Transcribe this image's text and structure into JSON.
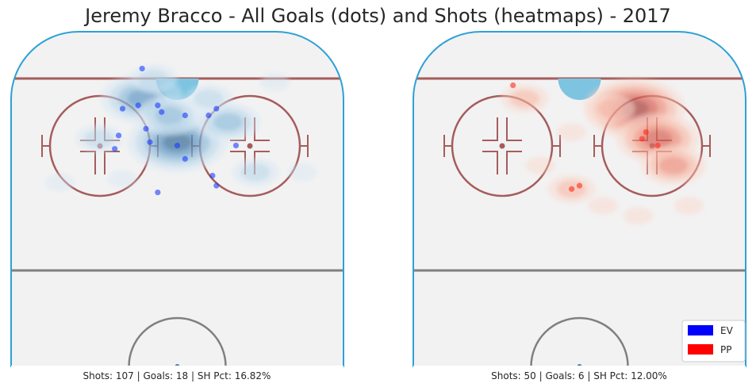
{
  "title": "Jeremy Bracco - All Goals (dots) and Shots (heatmaps) - 2017",
  "legend": [
    {
      "label": "EV",
      "color": "#0000ff"
    },
    {
      "label": "PP",
      "color": "#ff0000"
    }
  ],
  "colors": {
    "rink_fill": "#f2f2f2",
    "boards": "#2ea1d6",
    "red_line": "#a65c5c",
    "crease": "#7ec4e0",
    "gray_line": "#808080",
    "ev_dot": "#1a3cff",
    "pp_dot": "#ff2a1a"
  },
  "chart_data": [
    {
      "type": "scatter",
      "panel": "left",
      "strength": "EV",
      "caption": "Shots: 107 | Goals: 18 | SH Pct: 16.82%",
      "shots": 107,
      "goals": 18,
      "sh_pct": "16.82%",
      "xlim": [
        -42.5,
        42.5
      ],
      "ylim": [
        0,
        100
      ],
      "goals_points": [
        {
          "x": -9,
          "y": 89
        },
        {
          "x": -14,
          "y": 77
        },
        {
          "x": -10,
          "y": 78
        },
        {
          "x": -5,
          "y": 78
        },
        {
          "x": 2,
          "y": 75
        },
        {
          "x": -4,
          "y": 76
        },
        {
          "x": 8,
          "y": 75
        },
        {
          "x": -8,
          "y": 71
        },
        {
          "x": -15,
          "y": 69
        },
        {
          "x": -7,
          "y": 67
        },
        {
          "x": 2,
          "y": 62
        },
        {
          "x": 0,
          "y": 66
        },
        {
          "x": 10,
          "y": 77
        },
        {
          "x": 15,
          "y": 66
        },
        {
          "x": 9,
          "y": 57
        },
        {
          "x": 10,
          "y": 54
        },
        {
          "x": -16,
          "y": 65
        },
        {
          "x": -5,
          "y": 52
        }
      ],
      "heatmap_hotspots": [
        {
          "x": -9,
          "y": 80,
          "level": 4
        },
        {
          "x": 0,
          "y": 67,
          "level": 5
        },
        {
          "x": 13,
          "y": 73,
          "level": 3
        },
        {
          "x": -2,
          "y": 75,
          "level": 3
        },
        {
          "x": 8,
          "y": 80,
          "level": 2
        },
        {
          "x": 20,
          "y": 58,
          "level": 2
        },
        {
          "x": -20,
          "y": 68,
          "level": 2
        },
        {
          "x": -14,
          "y": 56,
          "level": 1
        },
        {
          "x": 32,
          "y": 58,
          "level": 1
        },
        {
          "x": -30,
          "y": 55,
          "level": 1
        },
        {
          "x": 25,
          "y": 85,
          "level": 1
        },
        {
          "x": -6,
          "y": 86,
          "level": 2
        }
      ]
    },
    {
      "type": "scatter",
      "panel": "right",
      "strength": "PP",
      "caption": "Shots: 50 | Goals: 6 | SH Pct: 12.00%",
      "shots": 50,
      "goals": 6,
      "sh_pct": "12.00%",
      "xlim": [
        -42.5,
        42.5
      ],
      "ylim": [
        0,
        100
      ],
      "goals_points": [
        {
          "x": -17,
          "y": 84
        },
        {
          "x": 16,
          "y": 68
        },
        {
          "x": 17,
          "y": 70
        },
        {
          "x": -2,
          "y": 53
        },
        {
          "x": 0,
          "y": 54
        },
        {
          "x": 20,
          "y": 66
        }
      ],
      "heatmap_hotspots": [
        {
          "x": 14,
          "y": 77,
          "level": 5
        },
        {
          "x": 20,
          "y": 68,
          "level": 4
        },
        {
          "x": 24,
          "y": 60,
          "level": 3
        },
        {
          "x": 8,
          "y": 77,
          "level": 2
        },
        {
          "x": -14,
          "y": 80,
          "level": 2
        },
        {
          "x": -10,
          "y": 60,
          "level": 1
        },
        {
          "x": -2,
          "y": 53,
          "level": 2
        },
        {
          "x": 6,
          "y": 48,
          "level": 1
        },
        {
          "x": 28,
          "y": 48,
          "level": 1
        },
        {
          "x": 15,
          "y": 45,
          "level": 1
        },
        {
          "x": -2,
          "y": 70,
          "level": 1
        }
      ]
    }
  ]
}
